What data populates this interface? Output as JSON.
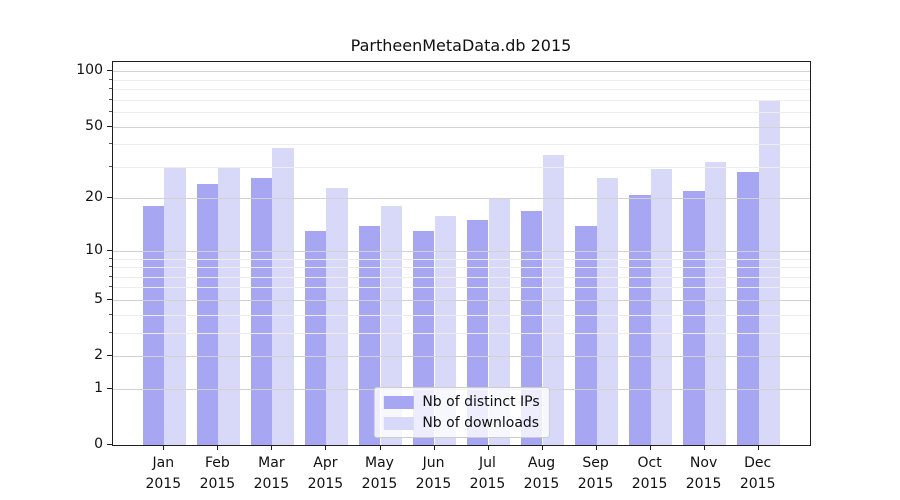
{
  "title": "PartheenMetaData.db 2015",
  "colors": {
    "distinct_ips_bar": "#a6a6f2",
    "downloads_bar": "#d8d8f8",
    "grid_major": "#d2d2d2",
    "grid_minor": "#ededed",
    "axis": "#1f1f1f"
  },
  "legend": {
    "items": [
      {
        "label": "Nb of distinct IPs",
        "color": "#a6a6f2"
      },
      {
        "label": "Nb of downloads",
        "color": "#d8d8f8"
      }
    ],
    "position": "lower center"
  },
  "chart_data": {
    "type": "bar",
    "title": "PartheenMetaData.db 2015",
    "categories": [
      "Jan",
      "Feb",
      "Mar",
      "Apr",
      "May",
      "Jun",
      "Jul",
      "Aug",
      "Sep",
      "Oct",
      "Nov",
      "Dec"
    ],
    "category_year": "2015",
    "series": [
      {
        "name": "Nb of distinct IPs",
        "color": "#a6a6f2",
        "values": [
          18,
          24,
          26,
          13,
          14,
          13,
          15,
          17,
          14,
          21,
          22,
          28
        ]
      },
      {
        "name": "Nb of downloads",
        "color": "#d8d8f8",
        "values": [
          30,
          30,
          38,
          23,
          18,
          16,
          20,
          35,
          26,
          29,
          32,
          70
        ]
      }
    ],
    "xlabel": "",
    "ylabel": "",
    "yscale": "log1p",
    "ylim": [
      0,
      112
    ],
    "yticks": [
      0,
      1,
      2,
      5,
      10,
      20,
      50,
      100
    ],
    "yticks_minor": [
      3,
      4,
      6,
      7,
      8,
      9,
      30,
      40,
      60,
      70,
      80,
      90
    ],
    "grid": "both",
    "legend_position": "lower center"
  }
}
